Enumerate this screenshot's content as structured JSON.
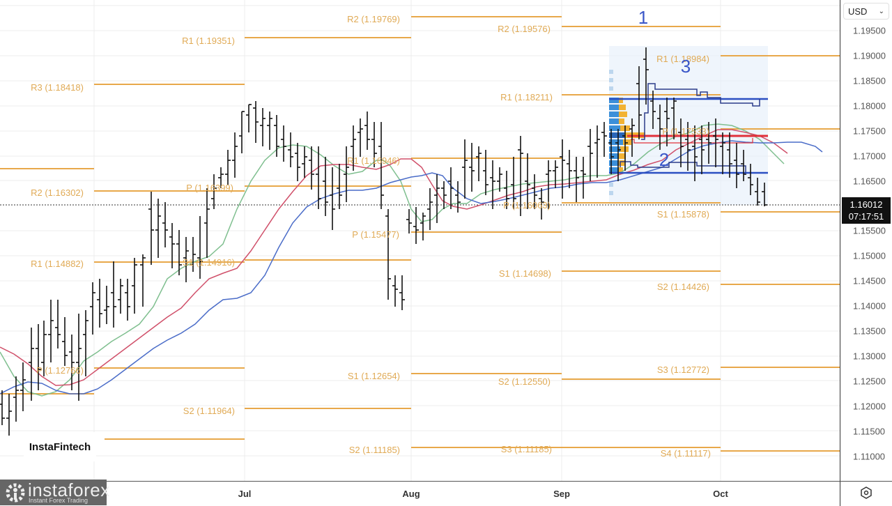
{
  "chart_data": {
    "type": "ohlc",
    "title": "",
    "instrument_currency": "USD",
    "xlabel": "",
    "ylabel": "",
    "ylim": [
      1.105,
      1.199
    ],
    "grid": true,
    "x_ticks": [
      "Jul",
      "Aug",
      "Sep",
      "Oct"
    ],
    "y_ticks": [
      "1.19500",
      "1.19000",
      "1.18500",
      "1.18000",
      "1.17500",
      "1.17000",
      "1.16500",
      "1.16000",
      "1.15500",
      "1.15000",
      "1.14500",
      "1.14000",
      "1.13500",
      "1.13000",
      "1.12500",
      "1.12000",
      "1.11500",
      "1.11000"
    ],
    "current_price": "1.16012",
    "countdown": "07:17:51",
    "pivot_levels": [
      {
        "period": "Jun",
        "label": "R3 (1.18418)",
        "value": 1.18418
      },
      {
        "period": "Jun",
        "label": "R2 (1.16302)",
        "value": 1.16302
      },
      {
        "period": "Jun",
        "label": "R1 (1.14882)",
        "value": 1.14882
      },
      {
        "period": "Jun",
        "label": "P (1.12766)",
        "value": 1.12766
      },
      {
        "period": "Jul",
        "label": "R1 (1.19351)",
        "value": 1.19351
      },
      {
        "period": "Jul",
        "label": "P (1.16399)",
        "value": 1.16399
      },
      {
        "period": "Jul",
        "label": "S1 (1.14916)",
        "value": 1.14916
      },
      {
        "period": "Jul",
        "label": "S2 (1.11964)",
        "value": 1.11964
      },
      {
        "period": "Aug",
        "label": "R2 (1.19769)",
        "value": 1.19769
      },
      {
        "period": "Aug",
        "label": "R1 (1.16946)",
        "value": 1.16946
      },
      {
        "period": "Aug",
        "label": "P (1.15477)",
        "value": 1.15477
      },
      {
        "period": "Aug",
        "label": "S1 (1.12654)",
        "value": 1.12654
      },
      {
        "period": "Aug",
        "label": "S2 (1.11185)",
        "value": 1.11185
      },
      {
        "period": "Sep",
        "label": "R2 (1.19576)",
        "value": 1.19576
      },
      {
        "period": "Sep",
        "label": "R1 (1.18211)",
        "value": 1.18211
      },
      {
        "period": "Sep",
        "label": "P (1.16063)",
        "value": 1.16063
      },
      {
        "period": "Sep",
        "label": "S1 (1.14698)",
        "value": 1.14698
      },
      {
        "period": "Sep",
        "label": "S2 (1.12550)",
        "value": 1.1255
      },
      {
        "period": "Sep",
        "label": "S3 (1.11185)",
        "value": 1.11185
      },
      {
        "period": "Oct",
        "label": "R1 (1.18984)",
        "value": 1.18984
      },
      {
        "period": "Oct",
        "label": "P (1.17533)",
        "value": 1.17533
      },
      {
        "period": "Oct",
        "label": "S1 (1.15878)",
        "value": 1.15878
      },
      {
        "period": "Oct",
        "label": "S2 (1.14426)",
        "value": 1.14426
      },
      {
        "period": "Oct",
        "label": "S3 (1.12772)",
        "value": 1.12772
      },
      {
        "period": "Oct",
        "label": "S4 (1.11117)",
        "value": 1.11117
      }
    ],
    "annotations": [
      "1",
      "2",
      "3"
    ],
    "series": [
      {
        "name": "MA fast",
        "color": "#7fbf8f"
      },
      {
        "name": "MA mid",
        "color": "#d0506a"
      },
      {
        "name": "MA slow",
        "color": "#4a6cc8"
      }
    ]
  },
  "axis": {
    "currency": "USD",
    "prices": [
      "1.19500",
      "1.19000",
      "1.18500",
      "1.18000",
      "1.17500",
      "1.17000",
      "1.16500",
      "1.15500",
      "1.15000",
      "1.14500",
      "1.14000",
      "1.13500",
      "1.13000",
      "1.12500",
      "1.12000",
      "1.11500",
      "1.11000"
    ],
    "current_price": "1.16012",
    "countdown": "07:17:51",
    "months": [
      "Jul",
      "Aug",
      "Sep",
      "Oct"
    ]
  },
  "labels": {
    "jun_r3": "R3 (1.18418)",
    "jun_r2": "R2 (1.16302)",
    "jun_r1": "R1 (1.14882)",
    "jun_p": "P (1.12766)",
    "jul_r1": "R1 (1.19351)",
    "jul_p": "P (1.16399)",
    "jul_s1": "S1 (1.14916)",
    "jul_s2": "S2 (1.11964)",
    "aug_r2": "R2 (1.19769)",
    "aug_r1": "R1 (1.16946)",
    "aug_p": "P (1.15477)",
    "aug_s1": "S1 (1.12654)",
    "aug_s2": "S2 (1.11185)",
    "sep_r2": "R2 (1.19576)",
    "sep_r1": "R1 (1.18211)",
    "sep_p": "P (1.16063)",
    "sep_s1": "S1 (1.14698)",
    "sep_s2": "S2 (1.12550)",
    "sep_s3": "S3 (1.11185)",
    "oct_r1": "R1 (1.18984)",
    "oct_p": "P (1.17533)",
    "oct_s1": "S1 (1.15878)",
    "oct_s2": "S2 (1.14426)",
    "oct_s3": "S3 (1.12772)",
    "oct_s4": "S4 (1.11117)",
    "ann1": "1",
    "ann2": "2",
    "ann3": "3"
  },
  "branding": {
    "fintech": "InstaFintech",
    "logo_name": "instaforex",
    "logo_tagline": "Instant Forex Trading"
  }
}
